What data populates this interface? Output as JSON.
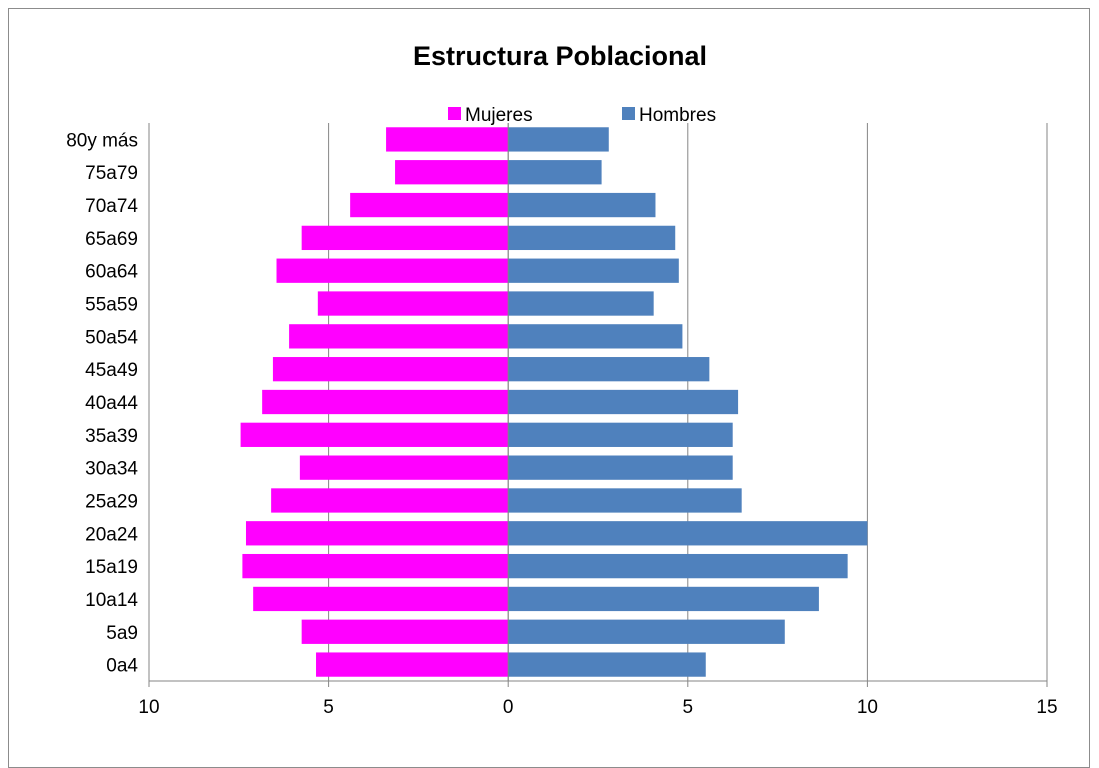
{
  "chart_data": {
    "type": "bar",
    "orientation": "horizontal",
    "layout": "population-pyramid",
    "title": "Estructura Poblacional",
    "categories": [
      "80y más",
      "75a79",
      "70a74",
      "65a69",
      "60a64",
      "55a59",
      "50a54",
      "45a49",
      "40a44",
      "35a39",
      "30a34",
      "25a29",
      "20a24",
      "15a19",
      "10a14",
      "5a9",
      "0a4"
    ],
    "series": [
      {
        "name": "Mujeres",
        "color": "#ff00ff",
        "side": "left",
        "values": [
          3.4,
          3.15,
          4.4,
          5.75,
          6.45,
          5.3,
          6.1,
          6.55,
          6.85,
          7.45,
          5.8,
          6.6,
          7.3,
          7.4,
          7.1,
          5.75,
          5.35
        ]
      },
      {
        "name": "Hombres",
        "color": "#4f81bd",
        "side": "right",
        "values": [
          2.8,
          2.6,
          4.1,
          4.65,
          4.75,
          4.05,
          4.85,
          5.6,
          6.4,
          6.25,
          6.25,
          6.5,
          10.0,
          9.45,
          8.65,
          7.7,
          5.5
        ]
      }
    ],
    "xlim": [
      -10,
      15
    ],
    "x_ticks": [
      {
        "value": -10,
        "label": "10"
      },
      {
        "value": -5,
        "label": "5"
      },
      {
        "value": 0,
        "label": "0"
      },
      {
        "value": 5,
        "label": "5"
      },
      {
        "value": 10,
        "label": "10"
      },
      {
        "value": 15,
        "label": "15"
      }
    ],
    "grid": "vertical",
    "legend_position": "top"
  }
}
